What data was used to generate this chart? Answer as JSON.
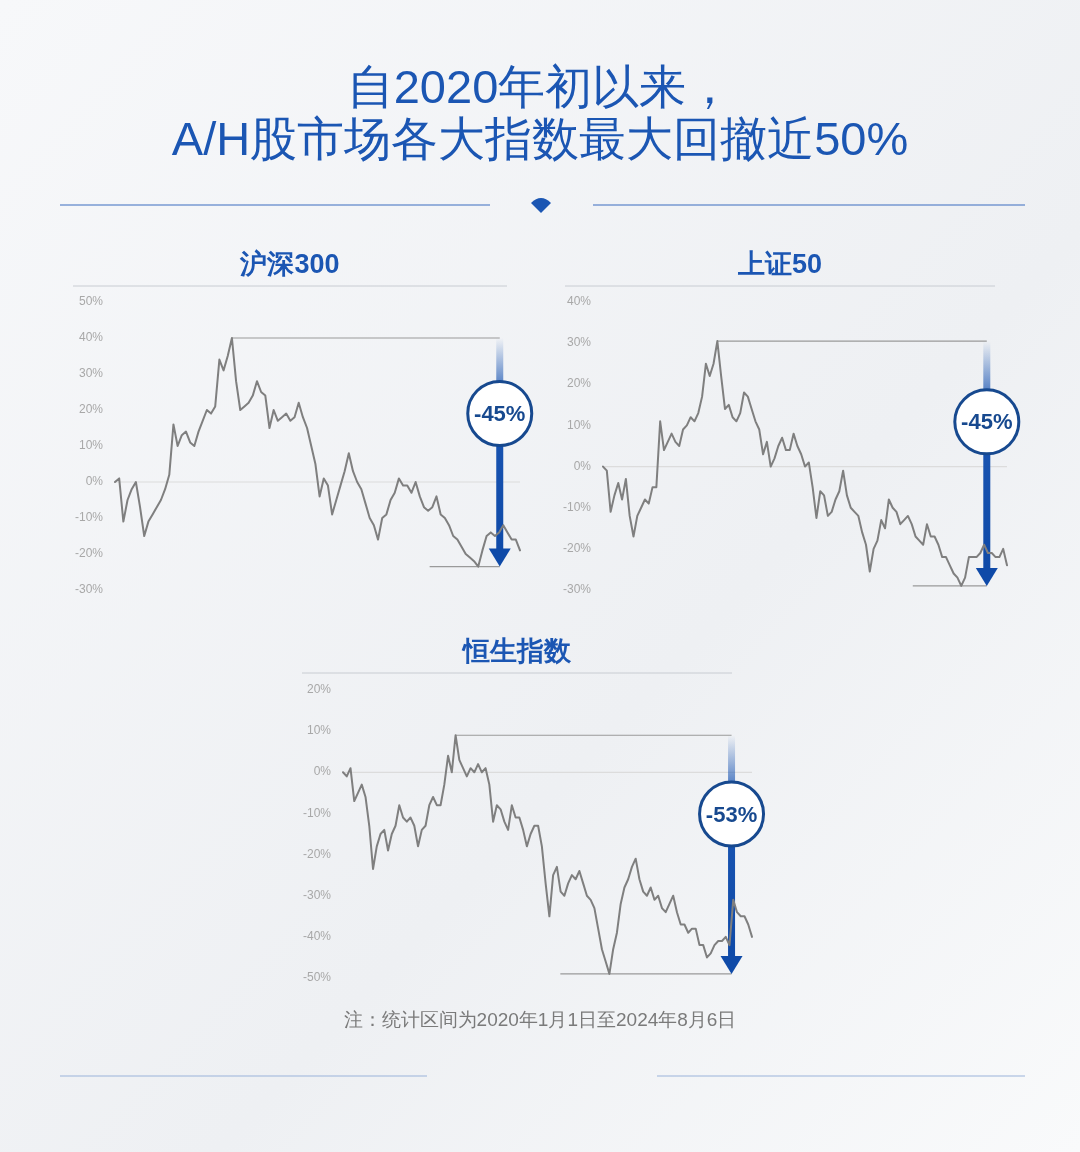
{
  "chart_data": [
    {
      "type": "other",
      "title": "自2020年初以来，\nA/H股市场各大指数最大回撤近50%"
    },
    {
      "type": "line",
      "title": "沪深300",
      "tick_labels": "y",
      "categories": [
        null,
        null,
        null,
        null,
        null,
        null,
        null,
        null,
        null,
        null,
        null,
        null,
        null,
        null,
        null,
        null,
        null,
        null,
        null,
        null,
        null,
        null,
        null,
        null,
        null,
        null,
        null,
        null,
        null,
        null,
        null,
        null,
        null,
        null,
        null,
        null,
        null,
        null,
        null,
        null,
        null,
        null,
        null,
        null,
        null,
        null,
        null,
        null,
        null,
        null,
        null,
        null,
        null,
        null,
        null,
        null,
        null,
        null,
        null,
        null,
        null,
        null,
        null,
        null,
        null,
        null,
        null,
        null,
        null,
        null,
        null,
        null,
        null,
        null,
        null,
        null,
        null,
        null,
        null,
        null,
        null,
        null,
        null,
        null,
        null,
        null,
        null,
        null,
        null,
        null,
        null,
        null,
        null,
        null,
        null,
        null,
        null,
        null
      ],
      "series": [
        {
          "color": "#7f7f7f",
          "values": [
            0,
            1,
            -11,
            -5,
            -2,
            0,
            -7,
            -15,
            -11,
            -9,
            -7,
            -5,
            -2,
            2,
            16,
            10,
            13,
            14,
            11,
            10,
            14,
            17,
            20,
            19,
            21,
            34,
            31,
            35,
            40,
            28,
            20,
            21,
            22,
            24,
            28,
            25,
            24,
            15,
            20,
            17,
            18,
            19,
            17,
            18,
            22,
            18,
            15,
            10,
            5,
            -4,
            1,
            -1,
            -9,
            -5,
            -1,
            3,
            8,
            3,
            0,
            -2,
            -6,
            -10,
            -12,
            -16,
            -10,
            -9,
            -5,
            -3,
            1,
            -1,
            -1,
            -3,
            0,
            -4,
            -7,
            -8,
            -7,
            -4,
            -9,
            -10,
            -12,
            -15,
            -16,
            -18,
            -20,
            -21,
            -22,
            -23.5,
            -19,
            -15,
            -14,
            -15,
            -14,
            -12,
            -14,
            -16,
            -16,
            -19
          ]
        }
      ],
      "ylim": [
        -30,
        50
      ],
      "yticks": [
        {
          "value": 50,
          "label": "50%"
        },
        {
          "value": 40,
          "label": "40%"
        },
        {
          "value": 30,
          "label": "30%"
        },
        {
          "value": 20,
          "label": "20%"
        },
        {
          "value": 10,
          "label": "10%"
        },
        {
          "value": 0,
          "label": "0%"
        },
        {
          "value": -10,
          "label": "-10%"
        },
        {
          "value": -20,
          "label": "-20%"
        },
        {
          "value": -30,
          "label": "-30%"
        }
      ],
      "ref_lines": [
        {
          "axis": "y",
          "value": 0,
          "color": "#dcdcdc"
        },
        {
          "axis": "y",
          "value": 40,
          "color": "#9a9a9a"
        },
        {
          "axis": "y",
          "value": -23.5,
          "color": "#9a9a9a"
        }
      ],
      "annotations": [
        {
          "text": "-45%"
        }
      ]
    },
    {
      "type": "line",
      "title": "上证50",
      "tick_labels": "y",
      "categories": [
        null,
        null,
        null,
        null,
        null,
        null,
        null,
        null,
        null,
        null,
        null,
        null,
        null,
        null,
        null,
        null,
        null,
        null,
        null,
        null,
        null,
        null,
        null,
        null,
        null,
        null,
        null,
        null,
        null,
        null,
        null,
        null,
        null,
        null,
        null,
        null,
        null,
        null,
        null,
        null,
        null,
        null,
        null,
        null,
        null,
        null,
        null,
        null,
        null,
        null,
        null,
        null,
        null,
        null,
        null,
        null,
        null,
        null,
        null,
        null,
        null,
        null,
        null,
        null,
        null,
        null,
        null,
        null,
        null,
        null,
        null,
        null,
        null,
        null,
        null,
        null,
        null,
        null,
        null,
        null,
        null,
        null,
        null,
        null,
        null,
        null,
        null,
        null,
        null,
        null,
        null,
        null,
        null,
        null,
        null,
        null,
        null,
        null,
        null,
        null,
        null,
        null,
        null,
        null,
        null,
        null,
        null
      ],
      "series": [
        {
          "color": "#7f7f7f",
          "values": [
            0,
            -1,
            -11,
            -7,
            -4,
            -8,
            -3,
            -12,
            -17,
            -12,
            -10,
            -8,
            -9,
            -5,
            -5,
            11,
            4,
            6,
            8,
            6,
            5,
            9,
            10,
            12,
            11,
            13,
            17,
            25,
            22,
            25,
            30.5,
            22,
            14,
            15,
            12,
            11,
            13,
            18,
            17,
            14,
            11,
            9,
            3,
            6,
            0,
            2,
            5,
            7,
            4,
            4,
            8,
            5,
            3,
            0,
            1,
            -5,
            -12.5,
            -6,
            -7,
            -12,
            -11,
            -8,
            -6,
            -1,
            -7,
            -10,
            -11,
            -12,
            -16,
            -19,
            -25.5,
            -20,
            -18,
            -13,
            -15,
            -8,
            -10,
            -11,
            -14,
            -13,
            -12,
            -14,
            -17,
            -18,
            -19,
            -14,
            -17,
            -17,
            -19,
            -22,
            -22,
            -24,
            -26,
            -27,
            -29,
            -27,
            -22,
            -22,
            -22,
            -21,
            -19,
            -21,
            -21,
            -22,
            -22,
            -20,
            -24
          ]
        }
      ],
      "ylim": [
        -30,
        40
      ],
      "yticks": [
        {
          "value": 40,
          "label": "40%"
        },
        {
          "value": 30,
          "label": "30%"
        },
        {
          "value": 20,
          "label": "20%"
        },
        {
          "value": 10,
          "label": "10%"
        },
        {
          "value": 0,
          "label": "0%"
        },
        {
          "value": -10,
          "label": "-10%"
        },
        {
          "value": -20,
          "label": "-20%"
        },
        {
          "value": -30,
          "label": "-30%"
        }
      ],
      "ref_lines": [
        {
          "axis": "y",
          "value": 0,
          "color": "#dcdcdc"
        },
        {
          "axis": "y",
          "value": 30.5,
          "color": "#9a9a9a"
        },
        {
          "axis": "y",
          "value": -29,
          "color": "#9a9a9a"
        }
      ],
      "annotations": [
        {
          "text": "-45%"
        }
      ]
    },
    {
      "type": "line",
      "title": "恒生指数",
      "tick_labels": "y",
      "categories": [
        null,
        null,
        null,
        null,
        null,
        null,
        null,
        null,
        null,
        null,
        null,
        null,
        null,
        null,
        null,
        null,
        null,
        null,
        null,
        null,
        null,
        null,
        null,
        null,
        null,
        null,
        null,
        null,
        null,
        null,
        null,
        null,
        null,
        null,
        null,
        null,
        null,
        null,
        null,
        null,
        null,
        null,
        null,
        null,
        null,
        null,
        null,
        null,
        null,
        null,
        null,
        null,
        null,
        null,
        null,
        null,
        null,
        null,
        null,
        null,
        null,
        null,
        null,
        null,
        null,
        null,
        null,
        null,
        null,
        null,
        null,
        null,
        null,
        null,
        null,
        null,
        null,
        null,
        null,
        null,
        null,
        null,
        null,
        null,
        null,
        null,
        null,
        null,
        null,
        null,
        null,
        null,
        null,
        null,
        null,
        null,
        null,
        null,
        null,
        null,
        null,
        null,
        null,
        null,
        null,
        null,
        null,
        null,
        null,
        null
      ],
      "series": [
        {
          "color": "#7f7f7f",
          "values": [
            0,
            -1,
            1,
            -7,
            -5,
            -3,
            -6,
            -13,
            -23.5,
            -18,
            -15,
            -14,
            -19,
            -15,
            -13,
            -8,
            -11,
            -12,
            -11,
            -13,
            -18,
            -14,
            -13,
            -8,
            -6,
            -8,
            -8,
            -3,
            4,
            0,
            9,
            3,
            1,
            -1,
            1,
            0,
            2,
            0,
            1,
            -3,
            -12,
            -8,
            -9,
            -12,
            -14,
            -8,
            -11,
            -11,
            -14,
            -18,
            -15,
            -13,
            -13,
            -18,
            -27,
            -35,
            -25,
            -23,
            -29,
            -30,
            -27,
            -25,
            -26,
            -24,
            -27,
            -30,
            -31,
            -33,
            -38,
            -43,
            -46,
            -49,
            -43,
            -39,
            -32,
            -28,
            -26,
            -23,
            -21,
            -26,
            -29,
            -30,
            -28,
            -31,
            -30,
            -33,
            -34,
            -32,
            -30,
            -34,
            -37,
            -37,
            -39,
            -38,
            -38,
            -42,
            -42,
            -45,
            -44,
            -42,
            -41,
            -41,
            -40,
            -42,
            -31,
            -34,
            -35,
            -35,
            -37,
            -40
          ]
        }
      ],
      "ylim": [
        -50,
        20
      ],
      "yticks": [
        {
          "value": 20,
          "label": "20%"
        },
        {
          "value": 10,
          "label": "10%"
        },
        {
          "value": 0,
          "label": "0%"
        },
        {
          "value": -10,
          "label": "-10%"
        },
        {
          "value": -20,
          "label": "-20%"
        },
        {
          "value": -30,
          "label": "-30%"
        },
        {
          "value": -40,
          "label": "-40%"
        },
        {
          "value": -50,
          "label": "-50%"
        }
      ],
      "ref_lines": [
        {
          "axis": "y",
          "value": 0,
          "color": "#dcdcdc"
        },
        {
          "axis": "y",
          "value": 9,
          "color": "#9a9a9a"
        },
        {
          "axis": "y",
          "value": -49,
          "color": "#9a9a9a"
        }
      ],
      "annotations": [
        {
          "text": "-53%"
        },
        "注：统计区间为2020年1月1日至2024年8月6日"
      ]
    }
  ]
}
